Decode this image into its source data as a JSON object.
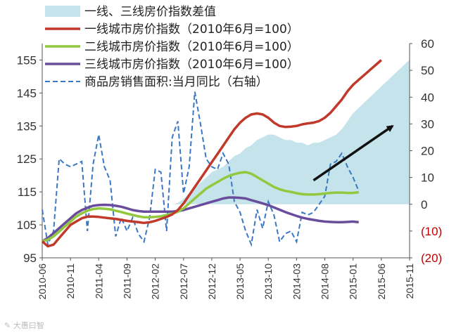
{
  "chart_data": {
    "type": "line",
    "title": "",
    "xlabel": "",
    "ylabel": "",
    "ylim": [
      95,
      160
    ],
    "y2lim": [
      -20,
      60
    ],
    "y_ticks": [
      155,
      145,
      135,
      125,
      115,
      105,
      95
    ],
    "y2_ticks": [
      "60",
      "50",
      "40",
      "30",
      "20",
      "10",
      "0",
      "(10)",
      "(20)"
    ],
    "x_ticks": [
      "2010-06",
      "2010-11",
      "2011-04",
      "2011-09",
      "2012-02",
      "2012-07",
      "2012-12",
      "2013-05",
      "2013-10",
      "2014-03",
      "2014-08",
      "2015-01",
      "2015-06",
      "2015-11"
    ],
    "legend_position": "top-left",
    "colors": {
      "spread": "#c5e3ea",
      "tier1": "#c0392b",
      "tier2": "#92c83e",
      "tier3": "#6a4c9c",
      "sales": "#3a78c3",
      "arrow": "#111111"
    },
    "series": [
      {
        "name": "一线、三线房价指数差值",
        "kind": "area",
        "values": [
          0,
          0,
          0,
          0,
          0,
          0,
          0,
          0,
          0,
          0,
          0,
          0,
          0,
          0,
          0,
          0,
          0,
          0,
          0,
          0,
          0,
          0,
          0,
          0,
          0.5,
          2,
          4,
          6,
          8,
          10,
          12,
          13,
          14,
          16,
          18,
          19,
          21,
          22,
          24,
          25,
          26,
          26,
          25,
          24,
          24,
          23,
          23,
          22,
          23,
          23,
          24,
          25,
          26,
          28,
          31,
          34,
          36,
          38,
          40,
          42,
          44,
          46,
          48,
          50,
          52,
          54
        ]
      },
      {
        "name": "一线城市房价指数（2010年6月=100）",
        "kind": "line",
        "values": [
          100.0,
          98.5,
          99.0,
          101.0,
          103.0,
          105.0,
          106.0,
          107.0,
          107.5,
          107.5,
          107.4,
          107.2,
          107.0,
          106.8,
          106.5,
          106.2,
          106.0,
          105.8,
          105.6,
          105.8,
          106.2,
          106.8,
          107.4,
          108.2,
          109.5,
          111.5,
          114.0,
          116.5,
          119.0,
          121.5,
          124.0,
          126.5,
          129.0,
          131.5,
          134.0,
          136.0,
          137.5,
          138.5,
          138.8,
          138.5,
          137.5,
          136.0,
          135.0,
          134.7,
          134.8,
          135.0,
          135.5,
          135.8,
          136.0,
          136.5,
          137.5,
          139.0,
          141.0,
          143.0,
          145.5,
          147.5,
          149.0,
          150.5,
          152.0,
          153.5,
          155.0
        ]
      },
      {
        "name": "二线城市房价指数（2010年6月=100）",
        "kind": "line",
        "values": [
          100.0,
          100.5,
          101.5,
          103.0,
          104.5,
          106.0,
          107.5,
          108.5,
          109.3,
          109.8,
          110.0,
          109.9,
          109.7,
          109.3,
          108.9,
          108.4,
          108.0,
          107.6,
          107.3,
          107.3,
          107.4,
          107.6,
          108.0,
          108.4,
          109.0,
          110.0,
          111.5,
          113.0,
          114.5,
          116.0,
          117.0,
          118.0,
          119.0,
          119.8,
          120.4,
          120.8,
          121.0,
          120.5,
          119.5,
          118.5,
          117.5,
          116.5,
          115.8,
          115.3,
          115.0,
          114.6,
          114.3,
          114.2,
          114.2,
          114.3,
          114.5,
          114.7,
          114.8,
          114.8,
          114.7,
          114.7,
          114.9
        ]
      },
      {
        "name": "三线城市房价指数（2010年6月=100）",
        "kind": "line",
        "values": [
          100.0,
          101.0,
          102.5,
          104.0,
          105.5,
          107.0,
          108.5,
          109.5,
          110.2,
          110.8,
          111.0,
          111.1,
          111.0,
          110.8,
          110.5,
          110.0,
          109.5,
          109.2,
          109.0,
          109.0,
          109.0,
          109.0,
          109.0,
          109.0,
          109.2,
          109.5,
          110.0,
          110.5,
          111.0,
          111.5,
          112.0,
          112.5,
          113.0,
          113.3,
          113.3,
          113.2,
          113.0,
          112.5,
          112.0,
          111.5,
          111.0,
          110.3,
          109.6,
          108.9,
          108.3,
          107.7,
          107.2,
          106.8,
          106.5,
          106.2,
          106.0,
          105.9,
          105.8,
          105.8,
          105.9,
          106.0,
          105.8
        ]
      },
      {
        "name": "商品房销售面积:当月同比（右轴）",
        "kind": "line-dashed",
        "axis": "right",
        "values": [
          -2,
          -15,
          -10,
          17,
          15,
          14,
          15,
          16,
          -10,
          15,
          26,
          14,
          9,
          -12,
          -5,
          -10,
          -5,
          -11,
          -14,
          -5,
          13,
          12,
          -10,
          25,
          31,
          4,
          14,
          42,
          30,
          17,
          14,
          13,
          19,
          15,
          1,
          -3,
          -10,
          -15,
          -2,
          -9,
          1,
          -4,
          -14,
          -11,
          -10,
          -14,
          -3,
          -4,
          -3,
          0,
          3,
          15,
          16,
          19,
          14,
          10,
          5
        ]
      }
    ],
    "annotations": [
      {
        "type": "arrow",
        "description": "trend arrow",
        "from_x": 48,
        "from_y": 118.5,
        "to_x": 62,
        "to_y": 135,
        "axis": "left"
      }
    ]
  },
  "watermark": "✎ 大愚曰智"
}
